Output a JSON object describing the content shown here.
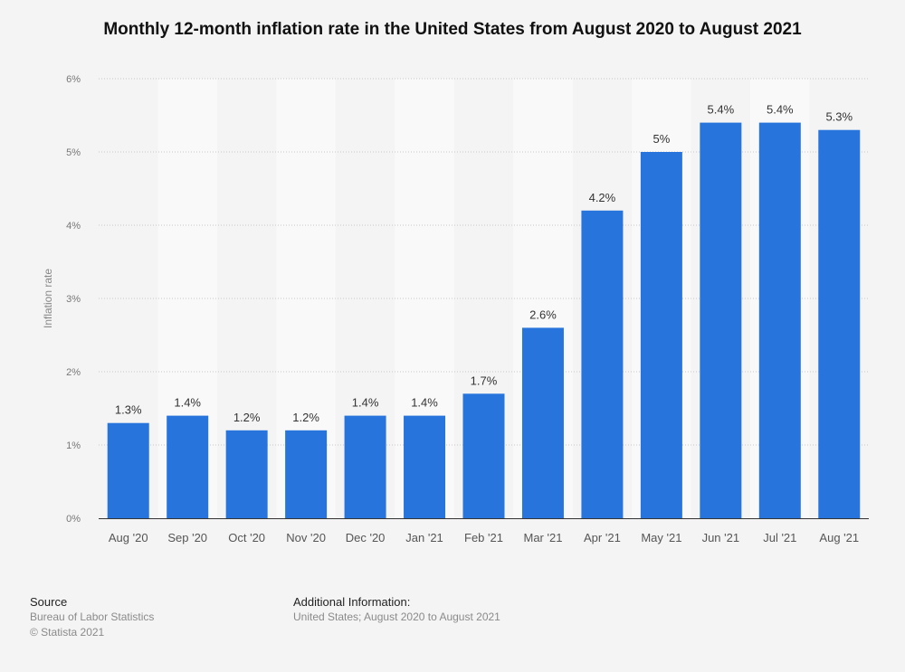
{
  "chart_data": {
    "type": "bar",
    "title": "Monthly 12-month inflation rate in the United States from August 2020 to August 2021",
    "xlabel": "",
    "ylabel": "Inflation rate",
    "categories": [
      "Aug '20",
      "Sep '20",
      "Oct '20",
      "Nov '20",
      "Dec '20",
      "Jan '21",
      "Feb '21",
      "Mar '21",
      "Apr '21",
      "May '21",
      "Jun '21",
      "Jul '21",
      "Aug '21"
    ],
    "values": [
      1.3,
      1.4,
      1.2,
      1.2,
      1.4,
      1.4,
      1.7,
      2.6,
      4.2,
      5,
      5.4,
      5.4,
      5.3
    ],
    "data_labels": [
      "1.3%",
      "1.4%",
      "1.2%",
      "1.2%",
      "1.4%",
      "1.4%",
      "1.7%",
      "2.6%",
      "4.2%",
      "5%",
      "5.4%",
      "5.4%",
      "5.3%"
    ],
    "ylim": [
      0,
      6
    ],
    "yticks": [
      "0%",
      "1%",
      "2%",
      "3%",
      "4%",
      "5%",
      "6%"
    ],
    "grid": true,
    "bar_color": "#2775dc"
  },
  "footer": {
    "source_heading": "Source",
    "source_text": "Bureau of Labor Statistics",
    "copyright": "© Statista 2021",
    "additional_heading": "Additional Information:",
    "additional_text": "United States; August 2020 to August 2021"
  }
}
